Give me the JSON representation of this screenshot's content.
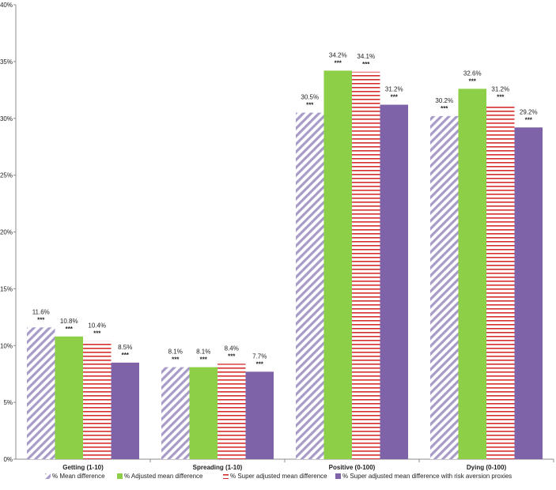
{
  "chart_data": {
    "type": "bar",
    "categories": [
      "Getting (1-10)",
      "Spreading (1-10)",
      "Positive (0-100)",
      "Dying (0-100)"
    ],
    "series": [
      {
        "name": "% Mean difference",
        "color": "#a99bc7",
        "pattern": "diagonal",
        "values": [
          11.6,
          8.1,
          30.5,
          30.2
        ],
        "labels": [
          "11.6%",
          "8.1%",
          "30.5%",
          "30.2%"
        ]
      },
      {
        "name": "% Adjusted mean difference",
        "color": "#8ecf48",
        "pattern": "solid",
        "values": [
          10.8,
          8.1,
          34.2,
          32.6
        ],
        "labels": [
          "10.8%",
          "8.1%",
          "34.2%",
          "32.6%"
        ]
      },
      {
        "name": "% Super adjusted mean difference",
        "color": "#d62e2e",
        "pattern": "horizontal",
        "values": [
          10.4,
          8.4,
          34.1,
          31.2
        ],
        "labels": [
          "10.4%",
          "8.4%",
          "34.1%",
          "31.2%"
        ]
      },
      {
        "name": "% Super adjusted mean difference with risk aversion proxies",
        "color": "#7f63a8",
        "pattern": "solid",
        "values": [
          8.5,
          7.7,
          31.2,
          29.2
        ],
        "labels": [
          "8.5%",
          "7.7%",
          "31.2%",
          "29.2%"
        ]
      }
    ],
    "significance": "***",
    "yticks": [
      "0%",
      "5%",
      "10%",
      "15%",
      "20%",
      "25%",
      "30%",
      "35%",
      "40%"
    ],
    "ylim": [
      0,
      40
    ],
    "grid": false,
    "legend_position": "bottom",
    "title": "",
    "xlabel": "",
    "ylabel": ""
  }
}
